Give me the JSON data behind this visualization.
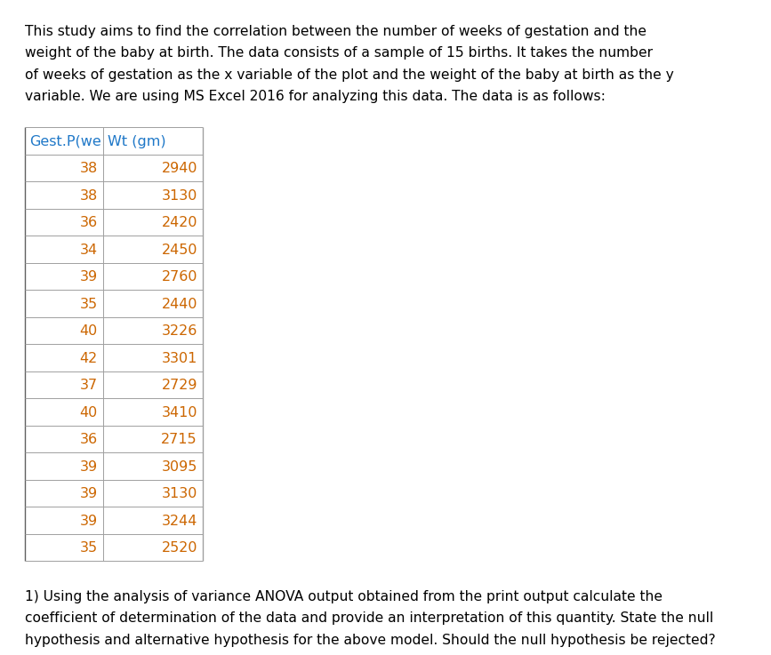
{
  "intro_text": "This study aims to find the correlation between the number of weeks of gestation and the\nweight of the baby at birth. The data consists of a sample of 15 births. It takes the number\nof weeks of gestation as the x variable of the plot and the weight of the baby at birth as the y\nvariable. We are using MS Excel 2016 for analyzing this data. The data is as follows:",
  "col1_header": "Gest.P(we",
  "col2_header": "Wt (gm)",
  "gestation": [
    38,
    38,
    36,
    34,
    39,
    35,
    40,
    42,
    37,
    40,
    36,
    39,
    39,
    39,
    35
  ],
  "weight": [
    2940,
    3130,
    2420,
    2450,
    2760,
    2440,
    3226,
    3301,
    2729,
    3410,
    2715,
    3095,
    3130,
    3244,
    2520
  ],
  "question_text": "1) Using the analysis of variance ANOVA output obtained from the print output calculate the\ncoefficient of determination of the data and provide an interpretation of this quantity. State the null\nhypothesis and alternative hypothesis for the above model. Should the null hypothesis be rejected?",
  "bg_color": "#ffffff",
  "text_color": "#000000",
  "table_header_color": "#1F78C8",
  "table_border_color": "#A0A0A0",
  "table_data_color": "#CC6600",
  "intro_fontsize": 11.2,
  "table_fontsize": 11.5,
  "question_fontsize": 11.2,
  "header_fontsize": 11.5
}
